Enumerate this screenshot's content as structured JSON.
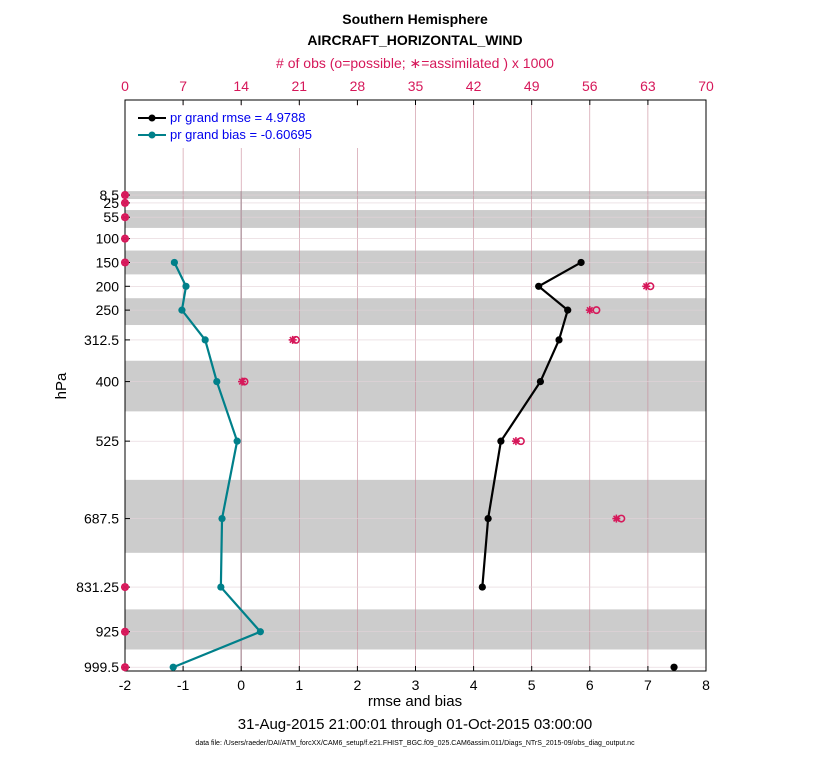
{
  "chart_data": {
    "type": "line",
    "title": "Southern Hemisphere",
    "subtitle": "AIRCRAFT_HORIZONTAL_WIND",
    "top_axis_label": "# of obs (o=possible; ∗=assimilated ) x 1000",
    "xlabel": "rmse and bias",
    "ylabel": "hPa",
    "date_range": "31-Aug-2015 21:00:01 through 01-Oct-2015 03:00:00",
    "footnote": "data file: /Users/raeder/DAI/ATM_forcXX/CAM6_setup/f.e21.FHIST_BGC.f09_025.CAM6assim.011/Diags_NTrS_2015-09/obs_diag_output.nc",
    "xlim": [
      -2,
      8
    ],
    "xticks": [
      "-2",
      "-1",
      "0",
      "1",
      "2",
      "3",
      "4",
      "5",
      "6",
      "7",
      "8"
    ],
    "top_xlim": [
      0,
      70
    ],
    "top_xticks": [
      "0",
      "7",
      "14",
      "21",
      "28",
      "35",
      "42",
      "49",
      "56",
      "63",
      "70"
    ],
    "levels": [
      "8.5",
      "25",
      "55",
      "100",
      "150",
      "200",
      "250",
      "312.5",
      "400",
      "525",
      "687.5",
      "831.25",
      "925",
      "999.5"
    ],
    "series": [
      {
        "name": "pr grand rmse = 4.9788",
        "color": "#000000",
        "points": [
          [
            5.85,
            "150"
          ],
          [
            5.12,
            "200"
          ],
          [
            5.62,
            "250"
          ],
          [
            5.47,
            "312.5"
          ],
          [
            5.15,
            "400"
          ],
          [
            4.47,
            "525"
          ],
          [
            4.25,
            "687.5"
          ],
          [
            4.15,
            "831.25"
          ]
        ],
        "isolated": [
          [
            7.45,
            "999.5"
          ]
        ]
      },
      {
        "name": "pr grand bias = -0.60695",
        "color": "#00808a",
        "points": [
          [
            -1.15,
            "150"
          ],
          [
            -0.95,
            "200"
          ],
          [
            -1.02,
            "250"
          ],
          [
            -0.62,
            "312.5"
          ],
          [
            -0.42,
            "400"
          ],
          [
            -0.07,
            "525"
          ],
          [
            -0.33,
            "687.5"
          ],
          [
            -0.35,
            "831.25"
          ],
          [
            0.33,
            "925"
          ],
          [
            -1.17,
            "999.5"
          ]
        ]
      }
    ],
    "obs_counts": [
      {
        "level": "8.5",
        "possible": 0,
        "assimilated": 0
      },
      {
        "level": "25",
        "possible": 0,
        "assimilated": 0
      },
      {
        "level": "55",
        "possible": 0,
        "assimilated": 0
      },
      {
        "level": "100",
        "possible": 0,
        "assimilated": 0
      },
      {
        "level": "150",
        "possible": 0,
        "assimilated": 0
      },
      {
        "level": "200",
        "possible": 63.3,
        "assimilated": 62.8
      },
      {
        "level": "250",
        "possible": 56.8,
        "assimilated": 56.0
      },
      {
        "level": "312.5",
        "possible": 20.6,
        "assimilated": 20.2
      },
      {
        "level": "400",
        "possible": 14.4,
        "assimilated": 14.1
      },
      {
        "level": "525",
        "possible": 47.7,
        "assimilated": 47.1
      },
      {
        "level": "687.5",
        "possible": 59.8,
        "assimilated": 59.2
      },
      {
        "level": "831.25",
        "possible": 0,
        "assimilated": 0
      },
      {
        "level": "925",
        "possible": 0,
        "assimilated": 0
      },
      {
        "level": "999.5",
        "possible": 0,
        "assimilated": 0
      }
    ],
    "colors": {
      "rmse": "#000000",
      "bias": "#00808a",
      "obs": "#d6185a",
      "band": "#cccccc",
      "grid": "#c98a99"
    }
  }
}
